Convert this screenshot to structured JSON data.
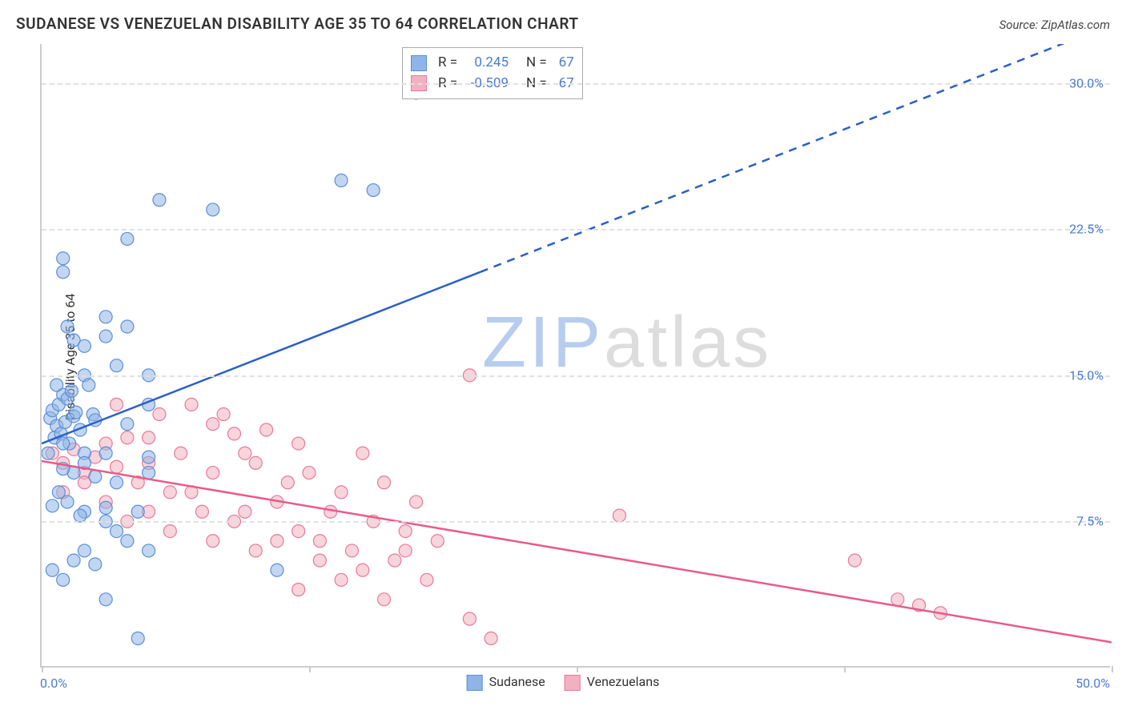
{
  "title": "SUDANESE VS VENEZUELAN DISABILITY AGE 35 TO 64 CORRELATION CHART",
  "source_label": "Source: ZipAtlas.com",
  "ylabel": "Disability Age 35 to 64",
  "watermark": {
    "part1": "ZIP",
    "part2": "atlas"
  },
  "chart": {
    "type": "scatter",
    "background_color": "#ffffff",
    "grid_color": "#e0e0e0",
    "axis_color": "#cccccc",
    "ticklabel_color": "#4a7bd0",
    "xlim": [
      0,
      50
    ],
    "ylim": [
      0,
      32
    ],
    "ytick_values": [
      7.5,
      15.0,
      22.5,
      30.0
    ],
    "ytick_labels": [
      "7.5%",
      "15.0%",
      "22.5%",
      "30.0%"
    ],
    "xtick_values": [
      0,
      12.5,
      25,
      37.5,
      50
    ],
    "x0_label": "0.0%",
    "xmax_label": "50.0%",
    "marker_radius": 8,
    "marker_opacity": 0.55,
    "line_width": 2.5
  },
  "series": {
    "sudanese": {
      "label": "Sudanese",
      "color": "#8fb4e8",
      "stroke": "#5a8fd8",
      "line_color": "#2a5fc8",
      "r_value": "0.245",
      "n_value": "67",
      "regression": {
        "x0": 0,
        "y0": 11.5,
        "x1_solid": 20.5,
        "y1_solid": 20.3,
        "x1_dash": 50,
        "y1_dash": 33
      },
      "points": [
        [
          0.4,
          12.8
        ],
        [
          0.5,
          13.2
        ],
        [
          0.6,
          11.8
        ],
        [
          0.7,
          12.4
        ],
        [
          0.8,
          13.5
        ],
        [
          0.9,
          12.0
        ],
        [
          1.0,
          14.0
        ],
        [
          1.1,
          12.6
        ],
        [
          1.2,
          13.8
        ],
        [
          1.3,
          11.5
        ],
        [
          1.4,
          14.2
        ],
        [
          1.5,
          12.9
        ],
        [
          1.6,
          13.1
        ],
        [
          1.8,
          12.2
        ],
        [
          2.0,
          15.0
        ],
        [
          2.0,
          11.0
        ],
        [
          2.2,
          14.5
        ],
        [
          2.4,
          13.0
        ],
        [
          2.5,
          12.7
        ],
        [
          1.0,
          21.0
        ],
        [
          1.0,
          20.3
        ],
        [
          1.2,
          17.5
        ],
        [
          1.5,
          16.8
        ],
        [
          3.0,
          18.0
        ],
        [
          3.5,
          15.5
        ],
        [
          4.0,
          17.5
        ],
        [
          4.0,
          22.0
        ],
        [
          5.0,
          13.5
        ],
        [
          5.5,
          24.0
        ],
        [
          8.0,
          23.5
        ],
        [
          5.0,
          15.0
        ],
        [
          4.0,
          12.5
        ],
        [
          3.0,
          11.0
        ],
        [
          2.0,
          10.5
        ],
        [
          1.5,
          10.0
        ],
        [
          1.0,
          10.2
        ],
        [
          5.0,
          10.0
        ],
        [
          3.5,
          9.5
        ],
        [
          2.5,
          9.8
        ],
        [
          0.8,
          9.0
        ],
        [
          1.2,
          8.5
        ],
        [
          2.0,
          8.0
        ],
        [
          3.0,
          8.2
        ],
        [
          3.5,
          7.0
        ],
        [
          4.0,
          6.5
        ],
        [
          5.0,
          6.0
        ],
        [
          2.0,
          6.0
        ],
        [
          1.5,
          5.5
        ],
        [
          0.5,
          5.0
        ],
        [
          3.0,
          7.5
        ],
        [
          4.5,
          8.0
        ],
        [
          1.8,
          7.8
        ],
        [
          0.5,
          8.3
        ],
        [
          2.5,
          5.3
        ],
        [
          1.0,
          4.5
        ],
        [
          3.0,
          3.5
        ],
        [
          4.5,
          1.5
        ],
        [
          5.0,
          10.8
        ],
        [
          11.0,
          5.0
        ],
        [
          14.0,
          25.0
        ],
        [
          15.5,
          24.5
        ],
        [
          17.5,
          29.5
        ],
        [
          1.0,
          11.5
        ],
        [
          0.3,
          11.0
        ],
        [
          0.7,
          14.5
        ],
        [
          2.0,
          16.5
        ],
        [
          3.0,
          17.0
        ]
      ]
    },
    "venezuelans": {
      "label": "Venezuelans",
      "color": "#f3b0c0",
      "stroke": "#e87a9a",
      "line_color": "#e85a8a",
      "r_value": "-0.509",
      "n_value": "67",
      "regression": {
        "x0": 0,
        "y0": 10.6,
        "x1": 50,
        "y1": 1.3
      },
      "points": [
        [
          0.5,
          11.0
        ],
        [
          1.0,
          10.5
        ],
        [
          1.5,
          11.2
        ],
        [
          2.0,
          10.0
        ],
        [
          2.5,
          10.8
        ],
        [
          3.0,
          11.5
        ],
        [
          3.5,
          10.3
        ],
        [
          4.0,
          11.8
        ],
        [
          4.5,
          9.5
        ],
        [
          5.0,
          10.5
        ],
        [
          5.5,
          13.0
        ],
        [
          6.0,
          9.0
        ],
        [
          6.5,
          11.0
        ],
        [
          7.0,
          13.5
        ],
        [
          7.5,
          8.0
        ],
        [
          8.0,
          12.5
        ],
        [
          8.5,
          13.0
        ],
        [
          9.0,
          12.0
        ],
        [
          9.5,
          11.0
        ],
        [
          10.0,
          10.5
        ],
        [
          10.5,
          12.2
        ],
        [
          11.0,
          8.5
        ],
        [
          11.5,
          9.5
        ],
        [
          12.0,
          11.5
        ],
        [
          12.0,
          7.0
        ],
        [
          12.5,
          10.0
        ],
        [
          13.0,
          6.5
        ],
        [
          13.5,
          8.0
        ],
        [
          14.0,
          9.0
        ],
        [
          14.5,
          6.0
        ],
        [
          15.0,
          11.0
        ],
        [
          15.5,
          7.5
        ],
        [
          16.0,
          9.5
        ],
        [
          16.5,
          5.5
        ],
        [
          17.0,
          7.0
        ],
        [
          17.0,
          6.0
        ],
        [
          17.5,
          8.5
        ],
        [
          18.0,
          4.5
        ],
        [
          18.5,
          6.5
        ],
        [
          15.0,
          5.0
        ],
        [
          14.0,
          4.5
        ],
        [
          13.0,
          5.5
        ],
        [
          12.0,
          4.0
        ],
        [
          20.0,
          15.0
        ],
        [
          27.0,
          7.8
        ],
        [
          38.0,
          5.5
        ],
        [
          40.0,
          3.5
        ],
        [
          41.0,
          3.2
        ],
        [
          42.0,
          2.8
        ],
        [
          16.0,
          3.5
        ],
        [
          20.0,
          2.5
        ],
        [
          21.0,
          1.5
        ],
        [
          1.0,
          9.0
        ],
        [
          2.0,
          9.5
        ],
        [
          3.0,
          8.5
        ],
        [
          4.0,
          7.5
        ],
        [
          5.0,
          8.0
        ],
        [
          6.0,
          7.0
        ],
        [
          7.0,
          9.0
        ],
        [
          8.0,
          6.5
        ],
        [
          9.0,
          7.5
        ],
        [
          10.0,
          6.0
        ],
        [
          3.5,
          13.5
        ],
        [
          5.0,
          11.8
        ],
        [
          8.0,
          10.0
        ],
        [
          9.5,
          8.0
        ],
        [
          11.0,
          6.5
        ]
      ]
    }
  },
  "legend_rows": [
    {
      "swatch_fill": "#8fb4e8",
      "swatch_stroke": "#5a8fd8",
      "r": "0.245",
      "n": "67"
    },
    {
      "swatch_fill": "#f3b0c0",
      "swatch_stroke": "#e87a9a",
      "r": "-0.509",
      "n": "67"
    }
  ],
  "labels": {
    "r": "R =",
    "n": "N ="
  }
}
